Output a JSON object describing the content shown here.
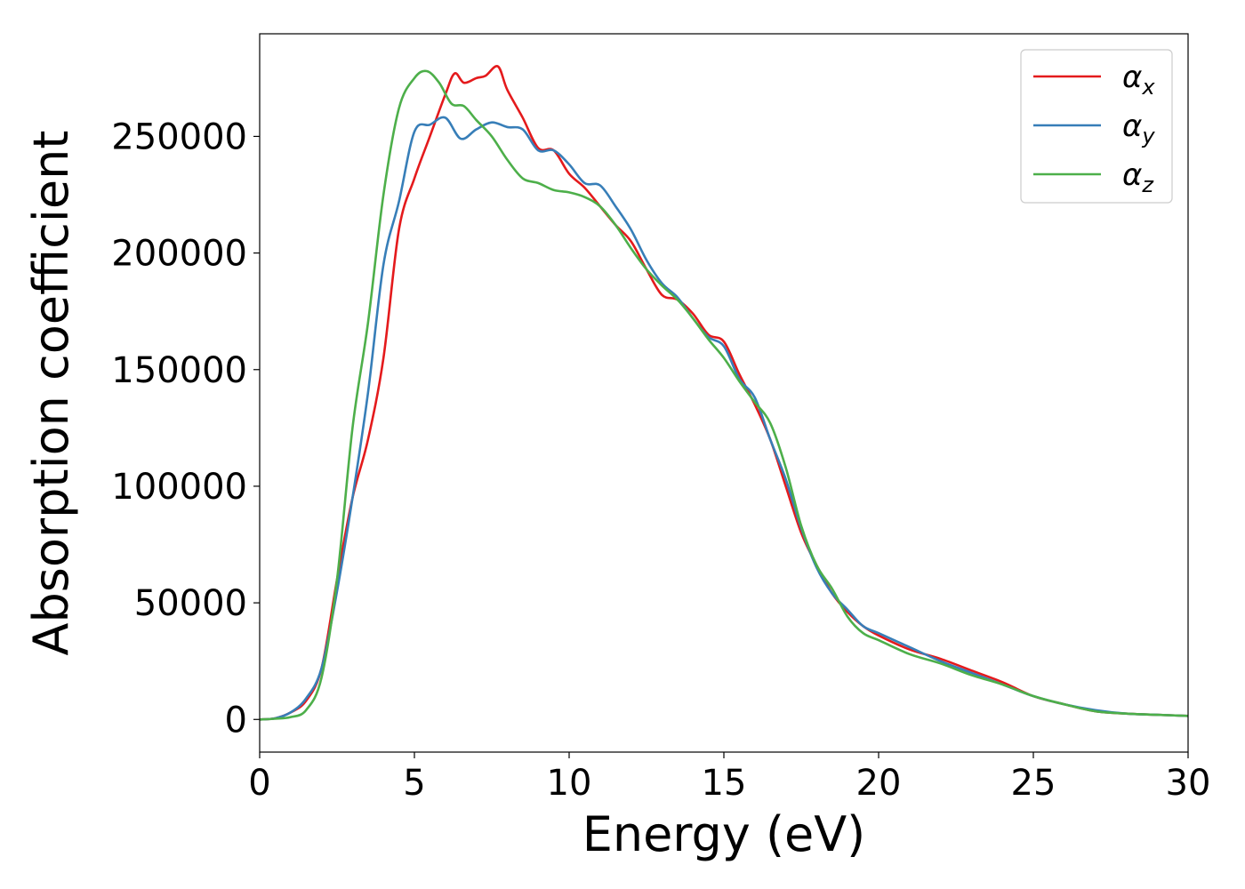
{
  "chart_data": {
    "type": "line",
    "title": "",
    "xlabel": "Energy (eV)",
    "ylabel": "Absorption coefficient",
    "xlim": [
      0,
      30
    ],
    "ylim": [
      -14000,
      294000
    ],
    "grid": false,
    "legend_position": "top-right",
    "x_ticks": [
      0,
      5,
      10,
      15,
      20,
      25,
      30
    ],
    "x_tick_labels": [
      "0",
      "5",
      "10",
      "15",
      "20",
      "25",
      "30"
    ],
    "y_ticks": [
      0,
      50000,
      100000,
      150000,
      200000,
      250000
    ],
    "y_tick_labels": [
      "0",
      "50000",
      "100000",
      "150000",
      "200000",
      "250000"
    ],
    "series": [
      {
        "name": "α_x",
        "legend_base": "α",
        "legend_sub": "x",
        "color": "#e41a1c",
        "x": [
          0,
          0.5,
          1.0,
          1.5,
          2.0,
          2.5,
          3.0,
          3.5,
          4.0,
          4.5,
          5.0,
          5.5,
          6.0,
          6.3,
          6.6,
          7.0,
          7.3,
          7.7,
          8.0,
          8.5,
          9.0,
          9.5,
          10.0,
          10.5,
          11.0,
          11.5,
          12.0,
          12.5,
          13.0,
          13.5,
          14.0,
          14.5,
          15.0,
          15.5,
          16.0,
          16.5,
          17.0,
          17.5,
          18.0,
          18.5,
          19.0,
          19.5,
          20.0,
          21.0,
          22.0,
          23.0,
          24.0,
          25.0,
          26.0,
          27.0,
          28.0,
          29.0,
          30.0
        ],
        "values": [
          0,
          500,
          3000,
          8000,
          22000,
          60000,
          95000,
          120000,
          155000,
          210000,
          232000,
          250000,
          268000,
          277000,
          273000,
          275000,
          276000,
          280000,
          270000,
          258000,
          245000,
          244000,
          234000,
          228000,
          220000,
          212000,
          205000,
          193000,
          182000,
          180000,
          174000,
          165000,
          162000,
          148000,
          135000,
          120000,
          100000,
          80000,
          66000,
          54000,
          46000,
          40000,
          36000,
          30000,
          26000,
          21000,
          16000,
          10000,
          6500,
          3500,
          2500,
          2000,
          1500
        ]
      },
      {
        "name": "α_y",
        "legend_base": "α",
        "legend_sub": "y",
        "color": "#377eb8",
        "x": [
          0,
          0.5,
          1.0,
          1.5,
          2.0,
          2.5,
          3.0,
          3.5,
          4.0,
          4.5,
          5.0,
          5.5,
          6.0,
          6.5,
          7.0,
          7.5,
          8.0,
          8.5,
          9.0,
          9.5,
          10.0,
          10.5,
          11.0,
          11.5,
          12.0,
          12.5,
          13.0,
          13.5,
          14.0,
          14.5,
          15.0,
          15.5,
          16.0,
          16.5,
          17.0,
          17.5,
          18.0,
          18.5,
          19.0,
          19.5,
          20.0,
          21.0,
          22.0,
          23.0,
          24.0,
          25.0,
          26.0,
          27.0,
          28.0,
          29.0,
          30.0
        ],
        "values": [
          0,
          500,
          3000,
          9000,
          22000,
          55000,
          95000,
          140000,
          195000,
          222000,
          252000,
          255000,
          258000,
          249000,
          253000,
          256000,
          254000,
          253000,
          244000,
          244000,
          238000,
          230000,
          229000,
          220000,
          210000,
          197000,
          187000,
          181000,
          172000,
          164000,
          160000,
          146000,
          138000,
          120000,
          103000,
          82000,
          65000,
          54000,
          47000,
          40000,
          37000,
          31000,
          25000,
          20000,
          15000,
          10000,
          6500,
          4000,
          2500,
          2000,
          1500
        ]
      },
      {
        "name": "α_z",
        "legend_base": "α",
        "legend_sub": "z",
        "color": "#4daf4a",
        "x": [
          0,
          0.5,
          1.0,
          1.5,
          2.0,
          2.5,
          3.0,
          3.5,
          4.0,
          4.5,
          5.0,
          5.4,
          5.8,
          6.2,
          6.6,
          7.0,
          7.5,
          8.0,
          8.5,
          9.0,
          9.5,
          10.0,
          10.5,
          11.0,
          11.5,
          12.0,
          12.5,
          13.0,
          13.5,
          14.0,
          14.5,
          15.0,
          15.5,
          16.0,
          16.5,
          17.0,
          17.5,
          18.0,
          18.5,
          19.0,
          19.5,
          20.0,
          21.0,
          22.0,
          23.0,
          24.0,
          25.0,
          26.0,
          27.0,
          28.0,
          29.0,
          30.0
        ],
        "values": [
          0,
          300,
          1000,
          4000,
          18000,
          60000,
          125000,
          170000,
          225000,
          262000,
          275000,
          278000,
          273000,
          264000,
          263000,
          257000,
          250000,
          240000,
          232000,
          230000,
          227000,
          226000,
          224000,
          220000,
          212000,
          202000,
          193000,
          186000,
          180000,
          172000,
          163000,
          155000,
          145000,
          136000,
          127000,
          108000,
          83000,
          66000,
          56000,
          44000,
          37000,
          34000,
          28000,
          24000,
          19000,
          15000,
          10000,
          6500,
          3500,
          2500,
          2000,
          1500
        ]
      }
    ]
  }
}
